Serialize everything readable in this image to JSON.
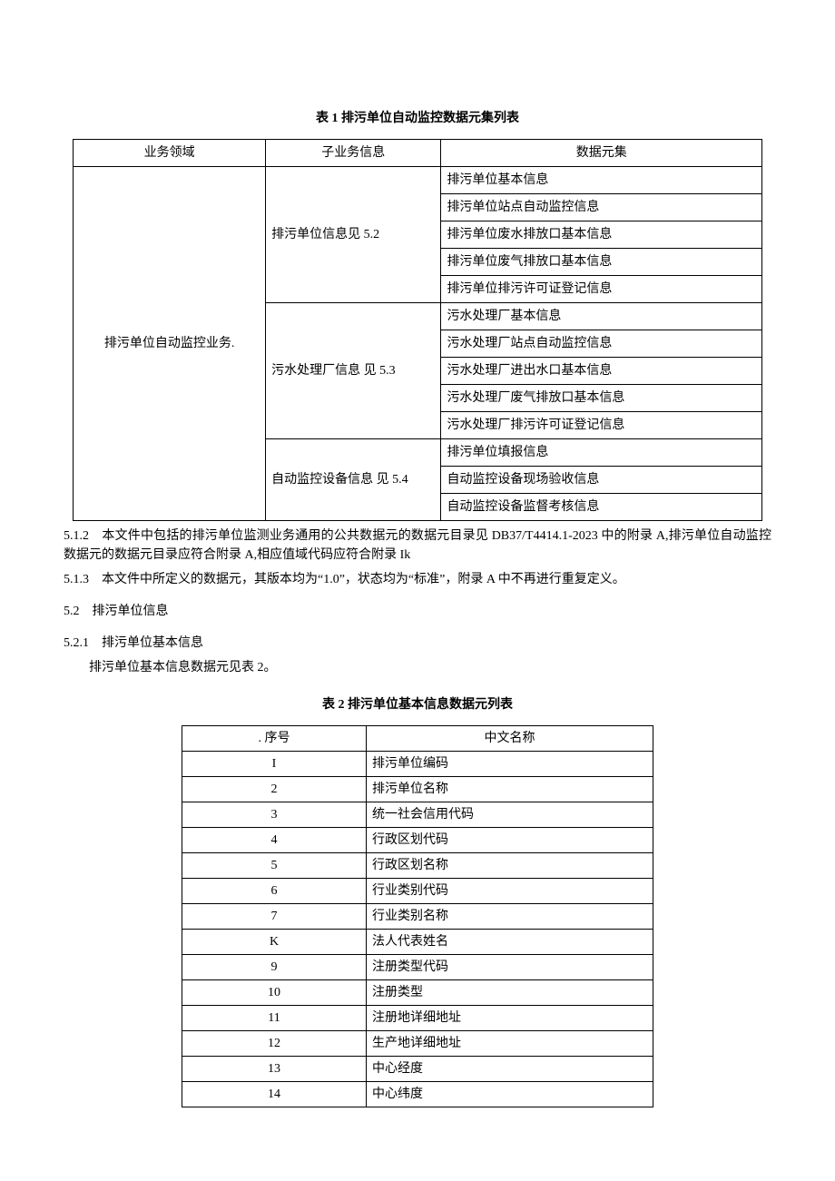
{
  "table1": {
    "caption": "表 1 排污单位自动监控数据元集列表",
    "headers": [
      "业务领域",
      "子业务信息",
      "数据元集"
    ],
    "domain": "排污单位自动监控业务.",
    "groups": [
      {
        "sub": "排污单位信息见 5.2",
        "items": [
          "排污单位基本信息",
          "排污单位站点自动监控信息",
          "排污单位废水排放口基本信息",
          "排污单位废气排放口基本信息",
          "排污单位排污许可证登记信息"
        ]
      },
      {
        "sub": "污水处理厂信息 见 5.3",
        "items": [
          "污水处理厂基本信息",
          "污水处理厂站点自动监控信息",
          "污水处理厂进出水口基本信息",
          "污水处理厂废气排放口基本信息",
          "污水处理厂排污许可证登记信息"
        ]
      },
      {
        "sub": "自动监控设备信息 见 5.4",
        "items": [
          "排污单位填报信息",
          "自动监控设备现场验收信息",
          "自动监控设备监督考核信息"
        ]
      }
    ]
  },
  "paragraphs": {
    "p512": "5.1.2　本文件中包括的排污单位监测业务通用的公共数据元的数据元目录见 DB37/T4414.1-2023 中的附录 A,排污单位自动监控数据元的数据元目录应符合附录 A,相应值域代码应符合附录 Ik",
    "p513": "5.1.3　本文件中所定义的数据元，其版本均为“1.0”，状态均为“标准”，附录 A 中不再进行重复定义。",
    "s52": "5.2　排污单位信息",
    "s521": "5.2.1　排污单位基本信息",
    "s521_body": "排污单位基本信息数据元见表 2。"
  },
  "table2": {
    "caption": "表 2 排污单位基本信息数据元列表",
    "headers": [
      ". 序号",
      "中文名称"
    ],
    "rows": [
      [
        "I",
        "排污单位编码"
      ],
      [
        "2",
        "排污单位名称"
      ],
      [
        "3",
        "统一社会信用代码"
      ],
      [
        "4",
        "行政区划代码"
      ],
      [
        "5",
        "行政区划名称"
      ],
      [
        "6",
        "行业类别代码"
      ],
      [
        "7",
        "行业类别名称"
      ],
      [
        "K",
        "法人代表姓名"
      ],
      [
        "9",
        "注册类型代码"
      ],
      [
        "10",
        "注册类型"
      ],
      [
        "11",
        "注册地详细地址"
      ],
      [
        "12",
        "生产地详细地址"
      ],
      [
        "13",
        "中心经度"
      ],
      [
        "14",
        "中心纬度"
      ]
    ]
  }
}
